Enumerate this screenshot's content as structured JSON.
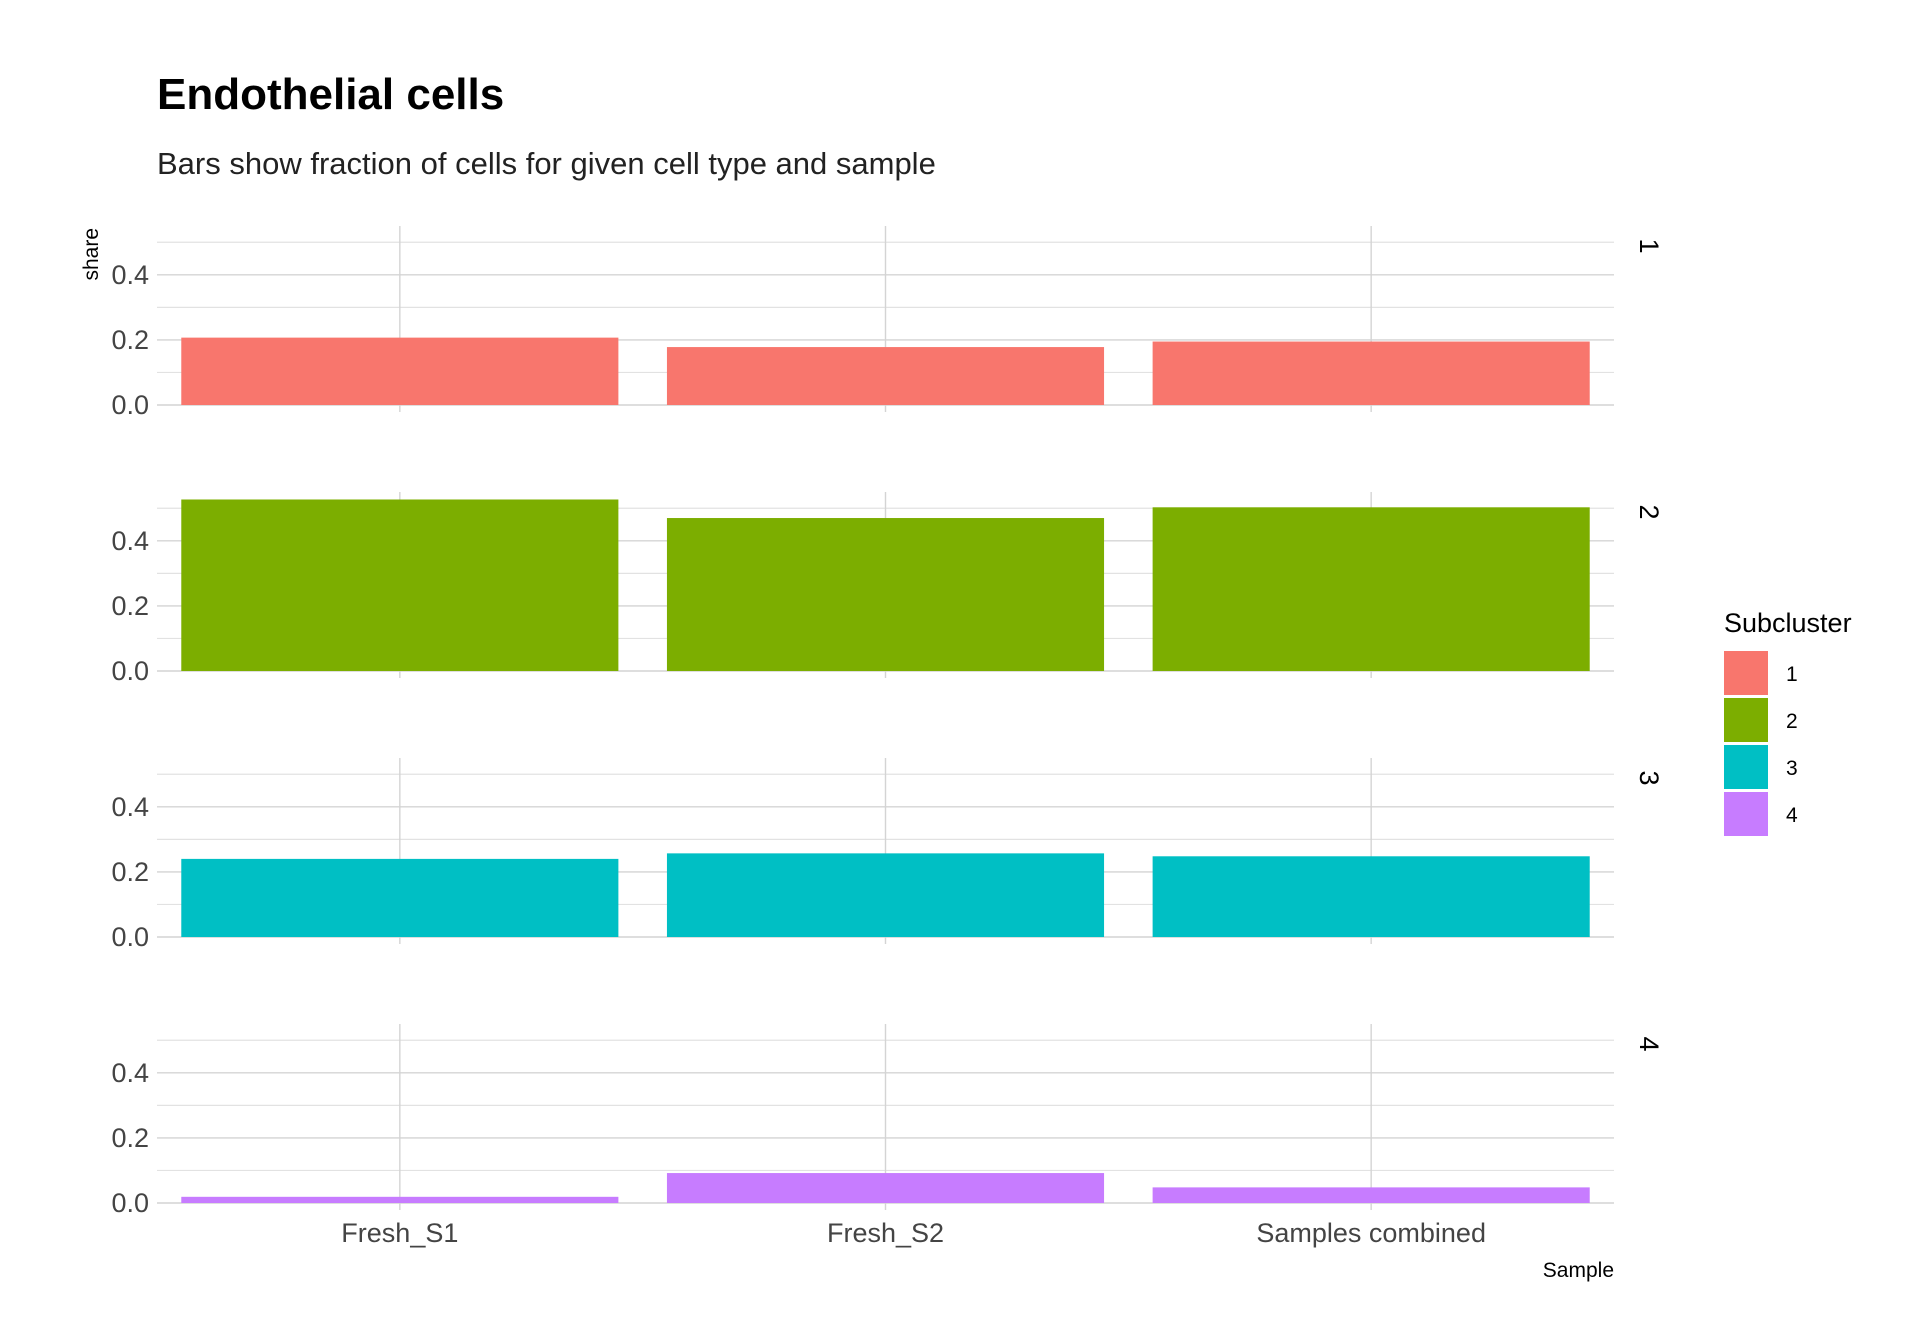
{
  "chart_data": {
    "type": "bar",
    "title": "Endothelial cells",
    "subtitle": "Bars show fraction of cells for given cell type and sample",
    "xlabel": "Sample",
    "ylabel": "share",
    "categories": [
      "Fresh_S1",
      "Fresh_S2",
      "Samples combined"
    ],
    "ylim": [
      0,
      0.55
    ],
    "yticks": [
      0.0,
      0.2,
      0.4
    ],
    "ytick_labels": [
      "0.0",
      "0.2",
      "0.4"
    ],
    "facet": "Subcluster",
    "legend_title": "Subcluster",
    "legend_position": "right",
    "grid": true,
    "series": [
      {
        "name": "1",
        "color": "#F8766D",
        "values": [
          0.207,
          0.178,
          0.195
        ]
      },
      {
        "name": "2",
        "color": "#7CAE00",
        "values": [
          0.527,
          0.47,
          0.503
        ]
      },
      {
        "name": "3",
        "color": "#00BFC4",
        "values": [
          0.24,
          0.257,
          0.248
        ]
      },
      {
        "name": "4",
        "color": "#C77CFF",
        "values": [
          0.019,
          0.092,
          0.048
        ]
      }
    ]
  }
}
